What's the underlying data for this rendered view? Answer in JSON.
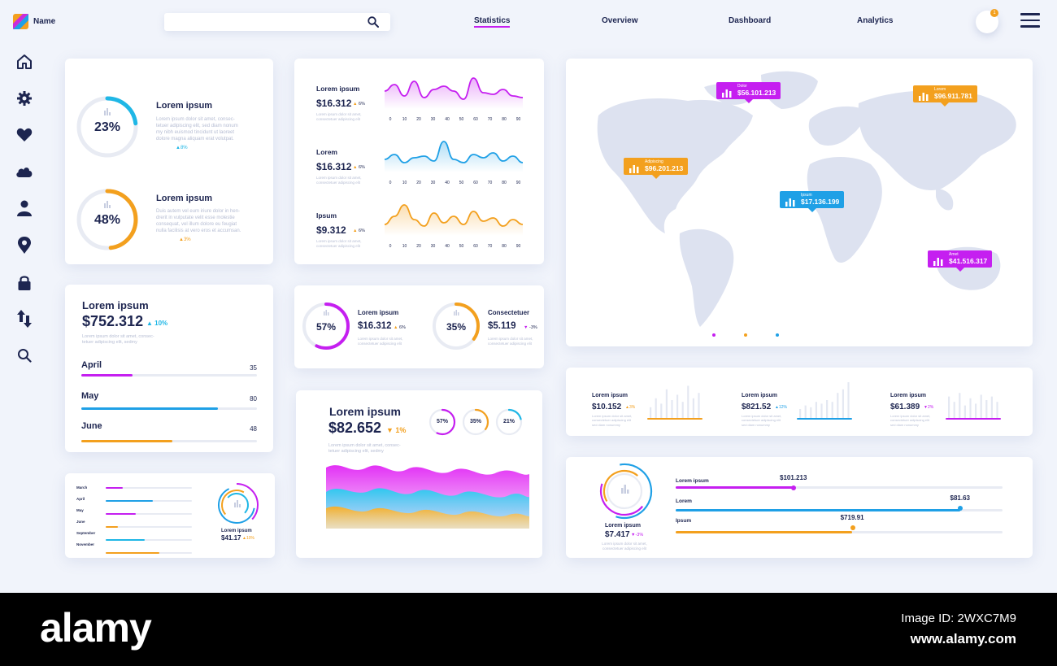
{
  "app": {
    "name": "Name"
  },
  "search": {
    "placeholder": ""
  },
  "nav": [
    "Statistics",
    "Overview",
    "Dashboard",
    "Analytics"
  ],
  "notifications": {
    "count": "1"
  },
  "sidebar": [
    "home-icon",
    "gear-icon",
    "heart-icon",
    "cloud-icon",
    "user-icon",
    "location-pin-icon",
    "lock-icon",
    "sort-arrows-icon",
    "search-icon"
  ],
  "donuts_card": {
    "items": [
      {
        "percent": "23%",
        "value": 0.23,
        "title": "Lorem ipsum",
        "text": "Lorem ipsum dolor sit amet, consec-\ntetuer adipiscing elit, sed diam nonum\nmy nibh euismod tincidunt ut laoreet\ndolore magna aliquam erat volutpat.",
        "change": "8%",
        "color": "#1fb7e6"
      },
      {
        "percent": "48%",
        "value": 0.48,
        "title": "Lorem ipsum",
        "text": "Duis autem vel eum iriure dolor in hen-\ndrerit in vulputate velit esse molestie\nconsequat, vel illum dolore eu feugiat\nnulla facilisis at vero eros et accumsan.",
        "change": "3%",
        "color": "#f3a01e"
      }
    ]
  },
  "waves_card": {
    "rows": [
      {
        "title": "Lorem ipsum",
        "value": "$16.312",
        "change": "6%",
        "color": "#c51ff0",
        "ticks": [
          "0",
          "10",
          "20",
          "30",
          "40",
          "50",
          "60",
          "70",
          "80",
          "90"
        ]
      },
      {
        "title": "Lorem",
        "value": "$16.312",
        "change": "6%",
        "color": "#1fa0e6",
        "ticks": [
          "0",
          "10",
          "20",
          "30",
          "40",
          "50",
          "60",
          "70",
          "80",
          "90"
        ]
      },
      {
        "title": "Ipsum",
        "value": "$9.312",
        "change": "6%",
        "color": "#f3a01e",
        "ticks": [
          "0",
          "10",
          "20",
          "30",
          "40",
          "50",
          "60",
          "70",
          "80",
          "90"
        ]
      }
    ],
    "caption": "Lorem ipsum dolor sit amet,\nconsectetuer adipiscing elit"
  },
  "map_card": {
    "pins": [
      {
        "label": "Dolor",
        "value": "$56.101.213",
        "color": "#c51ff0"
      },
      {
        "label": "Lorem",
        "value": "$96.911.781",
        "color": "#f3a01e"
      },
      {
        "label": "Adipiscing",
        "value": "$96.201.213",
        "color": "#f3a01e"
      },
      {
        "label": "Ipsum",
        "value": "$17.136.199",
        "color": "#1fa0e6"
      },
      {
        "label": "Amet",
        "value": "$41.516.317",
        "color": "#c51ff0"
      }
    ],
    "dots": [
      "#c51ff0",
      "#f3a01e",
      "#1fa0e6"
    ]
  },
  "months_card": {
    "title": "Lorem ipsum",
    "value": "$752.312",
    "change": "10%",
    "caption": "Lorem ipsum dolor sit amet, consec-\ntetuer adipiscing elit, sedmy",
    "items": [
      {
        "label": "April",
        "value": "35",
        "fraction": 0.29,
        "color": "#c51ff0"
      },
      {
        "label": "May",
        "value": "80",
        "fraction": 0.78,
        "color": "#1fa0e6"
      },
      {
        "label": "June",
        "value": "48",
        "fraction": 0.52,
        "color": "#f3a01e"
      }
    ]
  },
  "mini_donuts_card": {
    "items": [
      {
        "percent": "57%",
        "value": 0.57,
        "title": "Lorem ipsum",
        "amount": "$16.312",
        "change": "6%",
        "dir": "up",
        "color": "#c51ff0"
      },
      {
        "percent": "35%",
        "value": 0.35,
        "title": "Consectetuer",
        "amount": "$5.119",
        "change": "-3%",
        "dir": "down",
        "color": "#f3a01e"
      }
    ],
    "caption": "Lorem ipsum dolor sit amet,\nconsectetuer adipiscing elit"
  },
  "area_card": {
    "title": "Lorem ipsum",
    "value": "$82.652",
    "change": "1%",
    "caption": "Lorem ipsum dolor sit amet, consec-\ntetuer adipiscing elit, sedmy",
    "rings": [
      {
        "percent": "57%",
        "value": 0.57,
        "color": "#c51ff0"
      },
      {
        "percent": "35%",
        "value": 0.35,
        "color": "#f3a01e"
      },
      {
        "percent": "21%",
        "value": 0.21,
        "color": "#1fb7e6"
      }
    ]
  },
  "bars_card": {
    "items": [
      {
        "title": "Lorem ipsum",
        "value": "$10.152",
        "change": "3%",
        "dir": "up",
        "color": "#f3a01e",
        "bars": [
          0.3,
          0.55,
          0.4,
          0.8,
          0.5,
          0.65,
          0.45,
          0.9,
          0.55,
          0.7
        ]
      },
      {
        "title": "Lorem ipsum",
        "value": "$821.52",
        "change": "12%",
        "dir": "up",
        "color": "#1fa0e6",
        "bars": [
          0.25,
          0.35,
          0.3,
          0.45,
          0.4,
          0.5,
          0.45,
          0.7,
          0.8,
          1.0
        ]
      },
      {
        "title": "Lorem ipsum",
        "value": "$61.389",
        "change": "2%",
        "dir": "down",
        "color": "#c51ff0",
        "bars": [
          0.6,
          0.45,
          0.7,
          0.35,
          0.55,
          0.4,
          0.65,
          0.5,
          0.6,
          0.45
        ]
      }
    ],
    "caption": "Lorem ipsum dolor sit amet,\nconsectetuer adipiscing elit\nsed diam nonummy"
  },
  "list_card": {
    "items": [
      {
        "label": "March",
        "fraction": 0.2,
        "color": "#c51ff0"
      },
      {
        "label": "April",
        "fraction": 0.55,
        "color": "#1fa0e6"
      },
      {
        "label": "May",
        "fraction": 0.35,
        "color": "#c51ff0"
      },
      {
        "label": "June",
        "fraction": 0.14,
        "color": "#f3a01e"
      },
      {
        "label": "September",
        "fraction": 0.45,
        "color": "#1fb7e6"
      },
      {
        "label": "November",
        "fraction": 0.62,
        "color": "#f3a01e"
      }
    ],
    "ring_title": "Lorem ipsum",
    "ring_value": "$41.17",
    "ring_change": "10%"
  },
  "progress_card": {
    "ring_title": "Lorem ipsum",
    "ring_value": "$7.417",
    "ring_change": "-3%",
    "caption": "Lorem ipsum dolor sit amet,\nconsectetuer adipiscing elit",
    "items": [
      {
        "label": "Lorem ipsum",
        "value": "$101.213",
        "fraction": 0.36,
        "color": "#c51ff0"
      },
      {
        "label": "Lorem",
        "value": "$81.63",
        "fraction": 0.87,
        "color": "#1fa0e6"
      },
      {
        "label": "Ipsum",
        "value": "$719.91",
        "fraction": 0.54,
        "color": "#f3a01e"
      }
    ]
  },
  "footer": {
    "brand": "alamy",
    "image_id": "Image ID: 2WXC7M9",
    "site": "www.alamy.com"
  }
}
